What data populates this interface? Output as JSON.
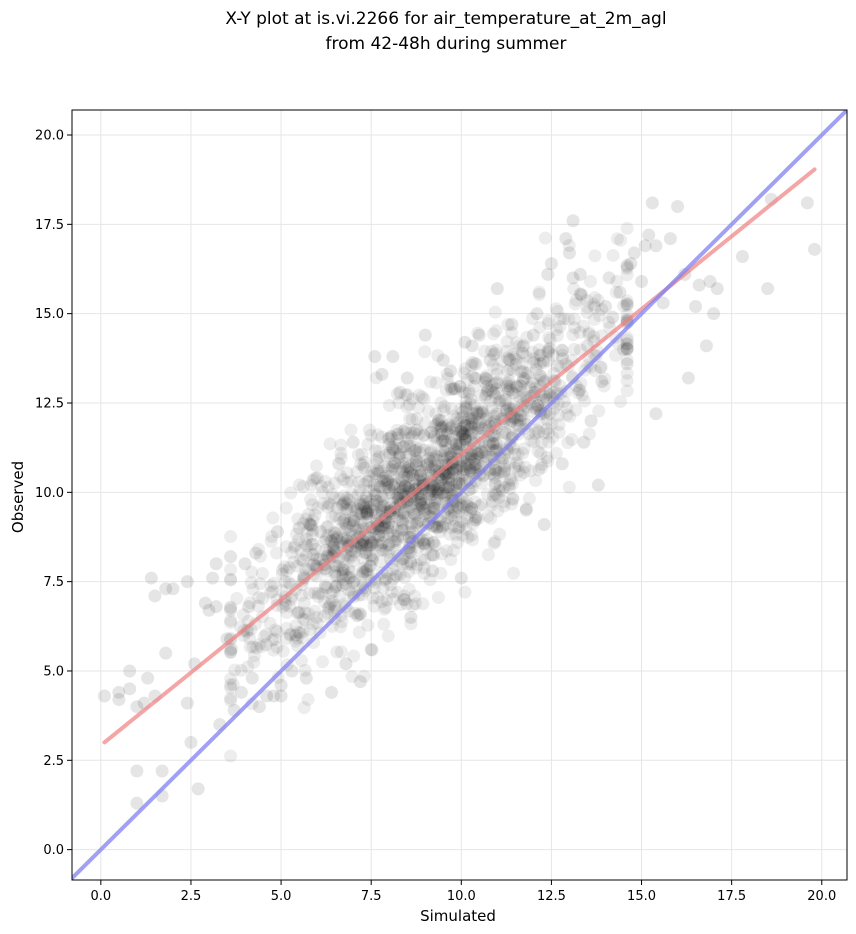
{
  "chart_data": {
    "type": "scatter",
    "title": [
      "X-Y plot at is.vi.2266 for air_temperature_at_2m_agl",
      "from 42-48h during summer"
    ],
    "xlabel": "Simulated",
    "ylabel": "Observed",
    "xlim": [
      -0.8,
      20.7
    ],
    "ylim": [
      -0.85,
      20.7
    ],
    "xticks": [
      0.0,
      2.5,
      5.0,
      7.5,
      10.0,
      12.5,
      15.0,
      17.5,
      20.0
    ],
    "yticks": [
      0.0,
      2.5,
      5.0,
      7.5,
      10.0,
      12.5,
      15.0,
      17.5,
      20.0
    ],
    "xtick_labels": [
      "0.0",
      "2.5",
      "5.0",
      "7.5",
      "10.0",
      "12.5",
      "15.0",
      "17.5",
      "20.0"
    ],
    "ytick_labels": [
      "0.0",
      "2.5",
      "5.0",
      "7.5",
      "10.0",
      "12.5",
      "15.0",
      "17.5",
      "20.0"
    ],
    "grid": true,
    "colors": {
      "points": "#000000",
      "fit_line": "#f08080",
      "identity_line": "#8080f0",
      "grid": "#e6e6e6"
    },
    "points": [
      [
        0.1,
        4.3
      ],
      [
        0.5,
        4.2
      ],
      [
        0.5,
        4.4
      ],
      [
        0.8,
        5.0
      ],
      [
        0.8,
        4.5
      ],
      [
        1.0,
        4.0
      ],
      [
        1.0,
        2.2
      ],
      [
        1.0,
        1.3
      ],
      [
        1.2,
        4.1
      ],
      [
        1.3,
        4.8
      ],
      [
        1.4,
        7.6
      ],
      [
        1.5,
        7.1
      ],
      [
        1.5,
        4.3
      ],
      [
        1.7,
        2.2
      ],
      [
        1.7,
        1.5
      ],
      [
        1.8,
        5.5
      ],
      [
        1.8,
        7.3
      ],
      [
        2.0,
        7.3
      ],
      [
        2.4,
        4.1
      ],
      [
        2.4,
        7.5
      ],
      [
        2.5,
        3.0
      ],
      [
        2.6,
        5.2
      ],
      [
        2.7,
        1.7
      ],
      [
        2.9,
        6.9
      ],
      [
        3.0,
        6.7
      ],
      [
        3.1,
        7.6
      ],
      [
        3.2,
        8.0
      ],
      [
        3.2,
        6.8
      ],
      [
        3.3,
        3.5
      ],
      [
        3.5,
        5.9
      ],
      [
        3.6,
        8.2
      ],
      [
        3.7,
        3.9
      ],
      [
        3.9,
        4.4
      ],
      [
        4.0,
        8.0
      ],
      [
        4.1,
        6.8
      ],
      [
        4.2,
        4.8
      ],
      [
        4.3,
        8.3
      ],
      [
        4.4,
        4.0
      ],
      [
        4.6,
        4.3
      ],
      [
        4.8,
        4.3
      ],
      [
        4.9,
        8.9
      ],
      [
        5.0,
        4.6
      ],
      [
        5.0,
        4.3
      ],
      [
        5.3,
        5.0
      ],
      [
        5.5,
        9.0
      ],
      [
        5.7,
        4.8
      ],
      [
        5.8,
        9.1
      ],
      [
        6.0,
        10.4
      ],
      [
        6.4,
        4.4
      ],
      [
        6.6,
        10.8
      ],
      [
        6.8,
        5.2
      ],
      [
        7.2,
        4.7
      ],
      [
        7.5,
        5.6
      ],
      [
        7.6,
        13.8
      ],
      [
        7.8,
        13.3
      ],
      [
        8.1,
        13.8
      ],
      [
        8.3,
        12.8
      ],
      [
        8.5,
        13.2
      ],
      [
        8.6,
        6.5
      ],
      [
        9.0,
        14.4
      ],
      [
        9.5,
        13.7
      ],
      [
        9.7,
        13.4
      ],
      [
        10.0,
        7.6
      ],
      [
        10.1,
        14.2
      ],
      [
        10.3,
        14.1
      ],
      [
        10.5,
        14.4
      ],
      [
        10.8,
        13.7
      ],
      [
        11.0,
        15.7
      ],
      [
        11.4,
        14.7
      ],
      [
        11.7,
        13.9
      ],
      [
        12.0,
        14.4
      ],
      [
        12.1,
        15.0
      ],
      [
        12.3,
        9.1
      ],
      [
        12.4,
        16.1
      ],
      [
        12.5,
        16.4
      ],
      [
        12.8,
        10.8
      ],
      [
        12.9,
        17.1
      ],
      [
        13.0,
        16.7
      ],
      [
        13.1,
        17.6
      ],
      [
        13.1,
        16.0
      ],
      [
        13.3,
        16.1
      ],
      [
        13.4,
        11.4
      ],
      [
        13.5,
        14.1
      ],
      [
        13.6,
        12.0
      ],
      [
        13.8,
        10.2
      ],
      [
        14.0,
        15.2
      ],
      [
        14.1,
        16.0
      ],
      [
        14.2,
        14.9
      ],
      [
        14.4,
        15.6
      ],
      [
        14.5,
        14.0
      ],
      [
        14.7,
        16.4
      ],
      [
        14.8,
        16.7
      ],
      [
        15.0,
        15.9
      ],
      [
        15.1,
        16.9
      ],
      [
        15.2,
        17.2
      ],
      [
        15.3,
        18.1
      ],
      [
        15.4,
        16.9
      ],
      [
        15.4,
        12.2
      ],
      [
        15.6,
        15.3
      ],
      [
        15.8,
        17.1
      ],
      [
        16.0,
        18.0
      ],
      [
        16.2,
        16.1
      ],
      [
        16.3,
        13.2
      ],
      [
        16.5,
        15.2
      ],
      [
        16.6,
        15.8
      ],
      [
        16.8,
        14.1
      ],
      [
        16.9,
        15.9
      ],
      [
        17.0,
        15.0
      ],
      [
        17.1,
        15.7
      ],
      [
        17.8,
        16.6
      ],
      [
        18.5,
        15.7
      ],
      [
        18.6,
        18.2
      ],
      [
        19.6,
        18.1
      ],
      [
        19.8,
        16.8
      ],
      [
        12.3,
        12.2
      ],
      [
        11.8,
        9.5
      ],
      [
        9.8,
        12.9
      ],
      [
        8.4,
        7.0
      ],
      [
        6.1,
        8.9
      ],
      [
        5.4,
        6.0
      ],
      [
        7.0,
        11.4
      ],
      [
        11.2,
        12.0
      ],
      [
        12.6,
        13.1
      ],
      [
        13.9,
        13.1
      ],
      [
        14.6,
        13.6
      ],
      [
        10.4,
        9.3
      ],
      [
        9.2,
        7.8
      ],
      [
        8.9,
        10.6
      ],
      [
        7.7,
        8.8
      ],
      [
        6.7,
        7.4
      ]
    ],
    "cloud": {
      "n": 1700,
      "x_mean": 9.1,
      "x_sd": 2.45,
      "residual_sd": 1.3,
      "x_min": 3.6,
      "x_max": 14.6
    },
    "fit_line": {
      "slope": 0.814,
      "intercept": 2.92,
      "x_range": [
        0.1,
        19.8
      ]
    },
    "identity_line": {
      "slope": 1.0,
      "intercept": 0.0
    }
  }
}
